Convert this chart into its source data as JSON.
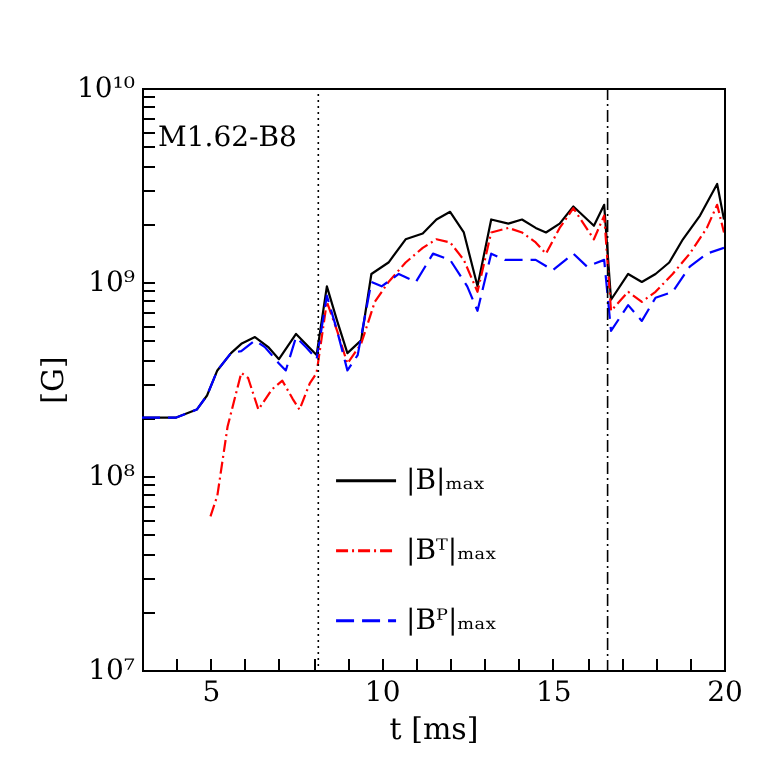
{
  "chart_data": {
    "type": "line",
    "xlabel": "t [ms]",
    "ylabel": "[G]",
    "annotations": [
      "M1.62-B8"
    ],
    "xlim": [
      3,
      20
    ],
    "ylim": [
      10000000.0,
      10000000000.0
    ],
    "xticks": [
      {
        "value": 3,
        "label": null
      },
      {
        "value": 4,
        "label": null
      },
      5,
      {
        "value": 6,
        "label": null
      },
      {
        "value": 7,
        "label": null
      },
      {
        "value": 8,
        "label": null
      },
      {
        "value": 9,
        "label": null
      },
      10,
      {
        "value": 11,
        "label": null
      },
      {
        "value": 12,
        "label": null
      },
      {
        "value": 13,
        "label": null
      },
      {
        "value": 14,
        "label": null
      },
      15,
      {
        "value": 16,
        "label": null
      },
      {
        "value": 17,
        "label": null
      },
      {
        "value": 18,
        "label": null
      },
      {
        "value": 19,
        "label": null
      },
      20
    ],
    "yticks": [
      {
        "value": 10000000.0,
        "label": "10⁷"
      },
      {
        "value": 20000000.0,
        "label": null
      },
      {
        "value": 30000000.0,
        "label": null
      },
      {
        "value": 40000000.0,
        "label": null
      },
      {
        "value": 50000000.0,
        "label": null
      },
      {
        "value": 60000000.0,
        "label": null
      },
      {
        "value": 70000000.0,
        "label": null
      },
      {
        "value": 80000000.0,
        "label": null
      },
      {
        "value": 90000000.0,
        "label": null
      },
      {
        "value": 100000000.0,
        "label": "10⁸"
      },
      {
        "value": 200000000.0,
        "label": null
      },
      {
        "value": 300000000.0,
        "label": null
      },
      {
        "value": 400000000.0,
        "label": null
      },
      {
        "value": 500000000.0,
        "label": null
      },
      {
        "value": 600000000.0,
        "label": null
      },
      {
        "value": 700000000.0,
        "label": null
      },
      {
        "value": 800000000.0,
        "label": null
      },
      {
        "value": 900000000.0,
        "label": null
      },
      {
        "value": 1000000000.0,
        "label": "10⁹"
      },
      {
        "value": 2000000000.0,
        "label": null
      },
      {
        "value": 3000000000.0,
        "label": null
      },
      {
        "value": 4000000000.0,
        "label": null
      },
      {
        "value": 5000000000.0,
        "label": null
      },
      {
        "value": 6000000000.0,
        "label": null
      },
      {
        "value": 7000000000.0,
        "label": null
      },
      {
        "value": 8000000000.0,
        "label": null
      },
      {
        "value": 9000000000.0,
        "label": null
      },
      {
        "value": 10000000000.0,
        "label": "10¹⁰"
      }
    ],
    "log": "y",
    "grid": false,
    "legend": "bottom",
    "marker": "none",
    "ref_lines": [
      {
        "axis": "x",
        "value": 8.15,
        "line_style": "dotted",
        "color": "#000000"
      },
      {
        "axis": "x",
        "value": 16.6,
        "line_style": "dashdot",
        "color": "#000000"
      }
    ],
    "series": [
      {
        "name": "|B|ₘₐₓ",
        "color": "#000000",
        "line_style": "solid",
        "x": [
          3,
          4,
          4.6,
          4.9,
          5.2,
          5.6,
          5.9,
          6.3,
          6.7,
          7.0,
          7.5,
          8.1,
          8.4,
          8.7,
          9.0,
          9.4,
          9.7,
          10.2,
          10.7,
          11.2,
          11.6,
          12.0,
          12.4,
          12.8,
          13.2,
          13.7,
          14.1,
          14.5,
          14.8,
          15.2,
          15.6,
          16.2,
          16.5,
          16.7,
          17.2,
          17.6,
          18.0,
          18.4,
          18.8,
          19.3,
          19.8,
          20
        ],
        "values": [
          200000000.0,
          200000000.0,
          220000000.0,
          260000000.0,
          350000000.0,
          430000000.0,
          480000000.0,
          520000000.0,
          460000000.0,
          400000000.0,
          540000000.0,
          420000000.0,
          950000000.0,
          630000000.0,
          430000000.0,
          500000000.0,
          1100000000.0,
          1260000000.0,
          1660000000.0,
          1780000000.0,
          2100000000.0,
          2300000000.0,
          1800000000.0,
          950000000.0,
          2100000000.0,
          2000000000.0,
          2100000000.0,
          1900000000.0,
          1800000000.0,
          2000000000.0,
          2450000000.0,
          1950000000.0,
          2500000000.0,
          810000000.0,
          1100000000.0,
          1000000000.0,
          1100000000.0,
          1260000000.0,
          1660000000.0,
          2200000000.0,
          3200000000.0,
          2100000000.0
        ]
      },
      {
        "name": "|Bᵀ|ₘₐₓ",
        "color": "#ff0000",
        "line_style": "dashdot",
        "x": [
          5.0,
          5.2,
          5.5,
          5.9,
          6.1,
          6.4,
          6.8,
          7.1,
          7.4,
          7.6,
          7.9,
          8.1,
          8.4,
          8.7,
          9.0,
          9.4,
          9.8,
          10.2,
          10.7,
          11.2,
          11.6,
          12.0,
          12.4,
          12.8,
          13.2,
          13.7,
          14.1,
          14.5,
          14.8,
          15.2,
          15.6,
          16.2,
          16.5,
          16.7,
          17.2,
          17.6,
          18.0,
          18.5,
          19.0,
          19.5,
          19.8,
          20
        ],
        "values": [
          62000000.0,
          79000000.0,
          180000000.0,
          340000000.0,
          320000000.0,
          220000000.0,
          280000000.0,
          310000000.0,
          250000000.0,
          220000000.0,
          300000000.0,
          340000000.0,
          790000000.0,
          560000000.0,
          380000000.0,
          480000000.0,
          790000000.0,
          1000000000.0,
          1260000000.0,
          1500000000.0,
          1660000000.0,
          1600000000.0,
          1300000000.0,
          890000000.0,
          1800000000.0,
          1900000000.0,
          1800000000.0,
          1600000000.0,
          1400000000.0,
          1900000000.0,
          2400000000.0,
          1660000000.0,
          2200000000.0,
          710000000.0,
          890000000.0,
          790000000.0,
          890000000.0,
          1100000000.0,
          1400000000.0,
          1900000000.0,
          2500000000.0,
          1800000000.0
        ]
      },
      {
        "name": "|Bᴾ|ₘₐₓ",
        "color": "#0000ff",
        "line_style": "dashed",
        "x": [
          3,
          4,
          4.6,
          4.9,
          5.2,
          5.6,
          5.9,
          6.3,
          6.6,
          7.0,
          7.2,
          7.5,
          7.8,
          8.1,
          8.4,
          8.7,
          9.0,
          9.3,
          9.7,
          10.0,
          10.5,
          11.0,
          11.5,
          12.0,
          12.5,
          12.8,
          13.2,
          13.6,
          14.0,
          14.5,
          15.0,
          15.6,
          16.0,
          16.5,
          16.7,
          17.2,
          17.6,
          18.0,
          18.5,
          19.0,
          19.5,
          20.0
        ],
        "values": [
          200000000.0,
          200000000.0,
          220000000.0,
          260000000.0,
          350000000.0,
          430000000.0,
          440000000.0,
          500000000.0,
          460000000.0,
          380000000.0,
          350000000.0,
          520000000.0,
          460000000.0,
          400000000.0,
          850000000.0,
          560000000.0,
          350000000.0,
          420000000.0,
          1000000000.0,
          950000000.0,
          1100000000.0,
          1000000000.0,
          1400000000.0,
          1300000000.0,
          950000000.0,
          710000000.0,
          1400000000.0,
          1300000000.0,
          1300000000.0,
          1300000000.0,
          1150000000.0,
          1400000000.0,
          1200000000.0,
          1300000000.0,
          560000000.0,
          760000000.0,
          630000000.0,
          830000000.0,
          890000000.0,
          1200000000.0,
          1400000000.0,
          1500000000.0
        ]
      }
    ]
  }
}
